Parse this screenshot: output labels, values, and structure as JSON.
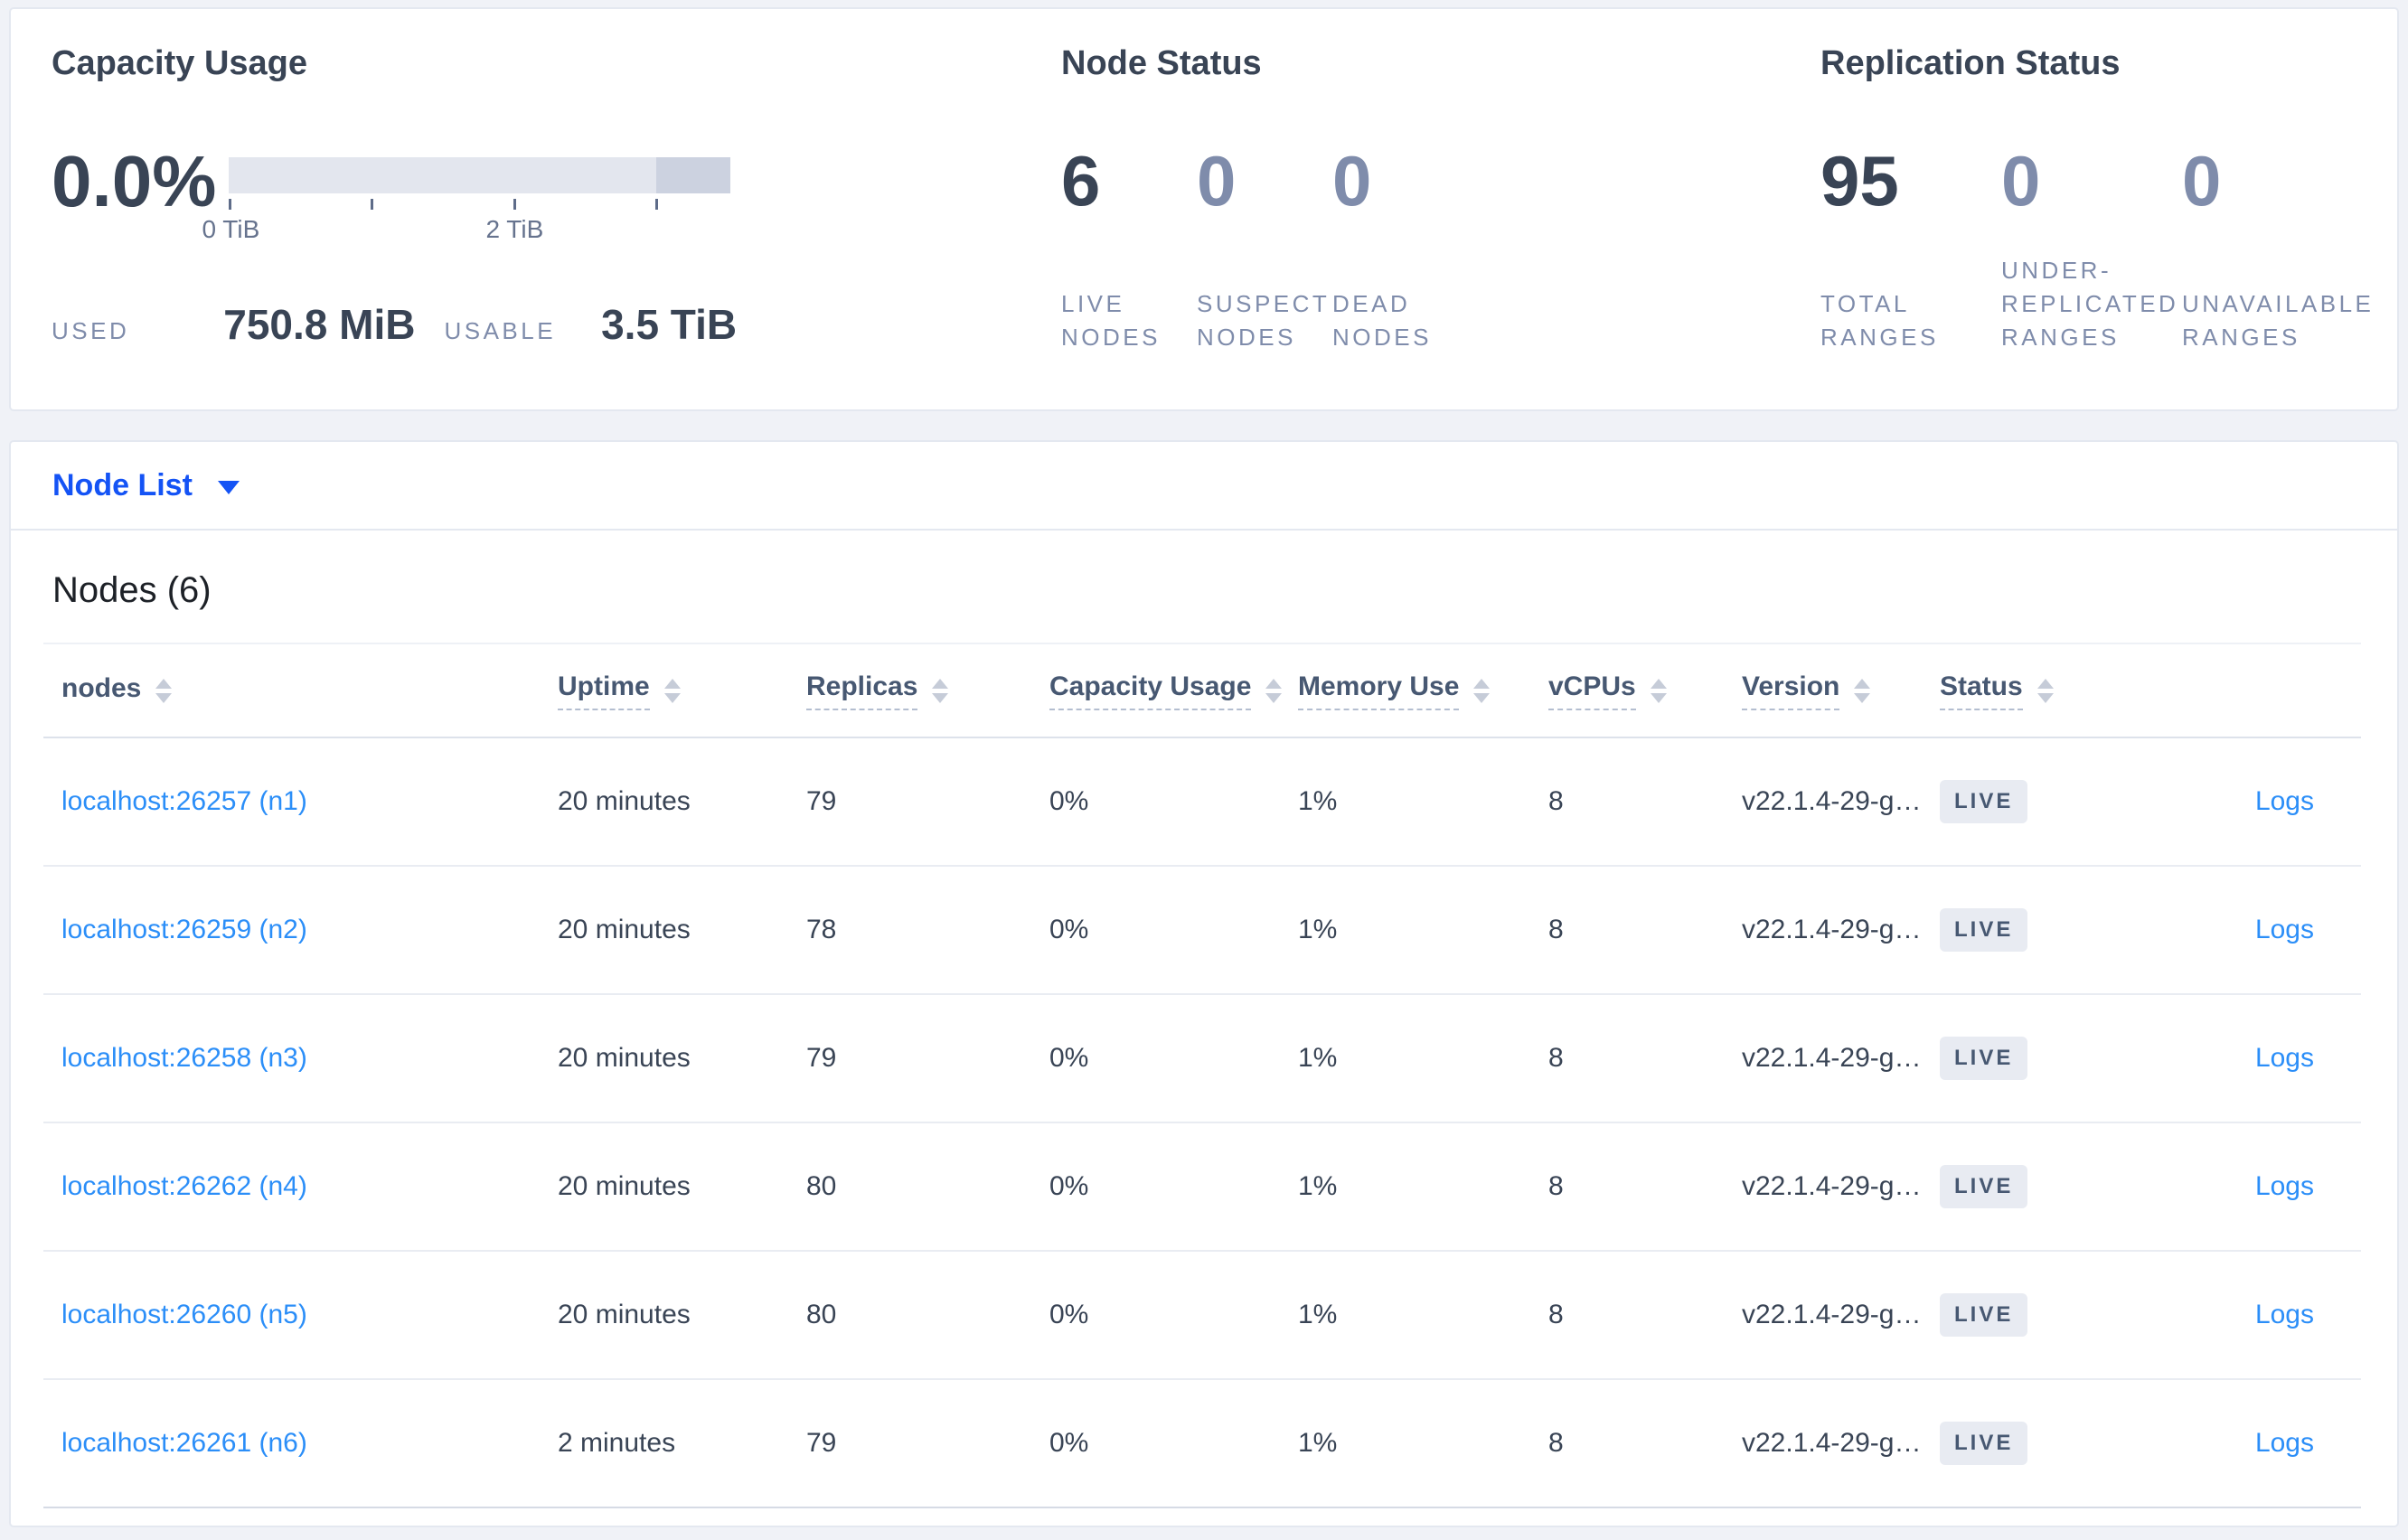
{
  "summary": {
    "capacity": {
      "title": "Capacity Usage",
      "percent": "0.0%",
      "axis": [
        "0 TiB",
        "2 TiB"
      ],
      "used_label": "USED",
      "used_value": "750.8 MiB",
      "usable_label": "USABLE",
      "usable_value": "3.5 TiB"
    },
    "node_status": {
      "title": "Node Status",
      "stats": [
        {
          "value": "6",
          "label": "LIVE NODES"
        },
        {
          "value": "0",
          "label": "SUSPECT NODES"
        },
        {
          "value": "0",
          "label": "DEAD NODES"
        }
      ]
    },
    "replication": {
      "title": "Replication Status",
      "stats": [
        {
          "value": "95",
          "label": "TOTAL RANGES"
        },
        {
          "value": "0",
          "label": "UNDER-REPLICATED RANGES"
        },
        {
          "value": "0",
          "label": "UNAVAILABLE RANGES"
        }
      ]
    }
  },
  "node_list": {
    "dropdown_label": "Node List"
  },
  "table": {
    "title": "Nodes (6)",
    "columns": [
      {
        "label": "nodes"
      },
      {
        "label": "Uptime"
      },
      {
        "label": "Replicas"
      },
      {
        "label": "Capacity Usage"
      },
      {
        "label": "Memory Use"
      },
      {
        "label": "vCPUs"
      },
      {
        "label": "Version"
      },
      {
        "label": "Status"
      }
    ],
    "rows": [
      {
        "node": "localhost:26257 (n1)",
        "uptime": "20 minutes",
        "replicas": "79",
        "capacity": "0%",
        "memory": "1%",
        "vcpus": "8",
        "version": "v22.1.4-29-g…",
        "status": "LIVE",
        "logs": "Logs"
      },
      {
        "node": "localhost:26259 (n2)",
        "uptime": "20 minutes",
        "replicas": "78",
        "capacity": "0%",
        "memory": "1%",
        "vcpus": "8",
        "version": "v22.1.4-29-g…",
        "status": "LIVE",
        "logs": "Logs"
      },
      {
        "node": "localhost:26258 (n3)",
        "uptime": "20 minutes",
        "replicas": "79",
        "capacity": "0%",
        "memory": "1%",
        "vcpus": "8",
        "version": "v22.1.4-29-g…",
        "status": "LIVE",
        "logs": "Logs"
      },
      {
        "node": "localhost:26262 (n4)",
        "uptime": "20 minutes",
        "replicas": "80",
        "capacity": "0%",
        "memory": "1%",
        "vcpus": "8",
        "version": "v22.1.4-29-g…",
        "status": "LIVE",
        "logs": "Logs"
      },
      {
        "node": "localhost:26260 (n5)",
        "uptime": "20 minutes",
        "replicas": "80",
        "capacity": "0%",
        "memory": "1%",
        "vcpus": "8",
        "version": "v22.1.4-29-g…",
        "status": "LIVE",
        "logs": "Logs"
      },
      {
        "node": "localhost:26261 (n6)",
        "uptime": "2 minutes",
        "replicas": "79",
        "capacity": "0%",
        "memory": "1%",
        "vcpus": "8",
        "version": "v22.1.4-29-g…",
        "status": "LIVE",
        "logs": "Logs"
      }
    ]
  },
  "colors": {
    "page_background": "#f0f2f7",
    "dropdown_blue": "#1453f5",
    "table_link_blue": "#2b8ef8",
    "slate_dark": "#394455",
    "slate_muted": "#7f8cab",
    "badge_background": "#e8ebf2",
    "bar_track": "#e3e6ee",
    "bar_segment": "#ccd2e0"
  }
}
